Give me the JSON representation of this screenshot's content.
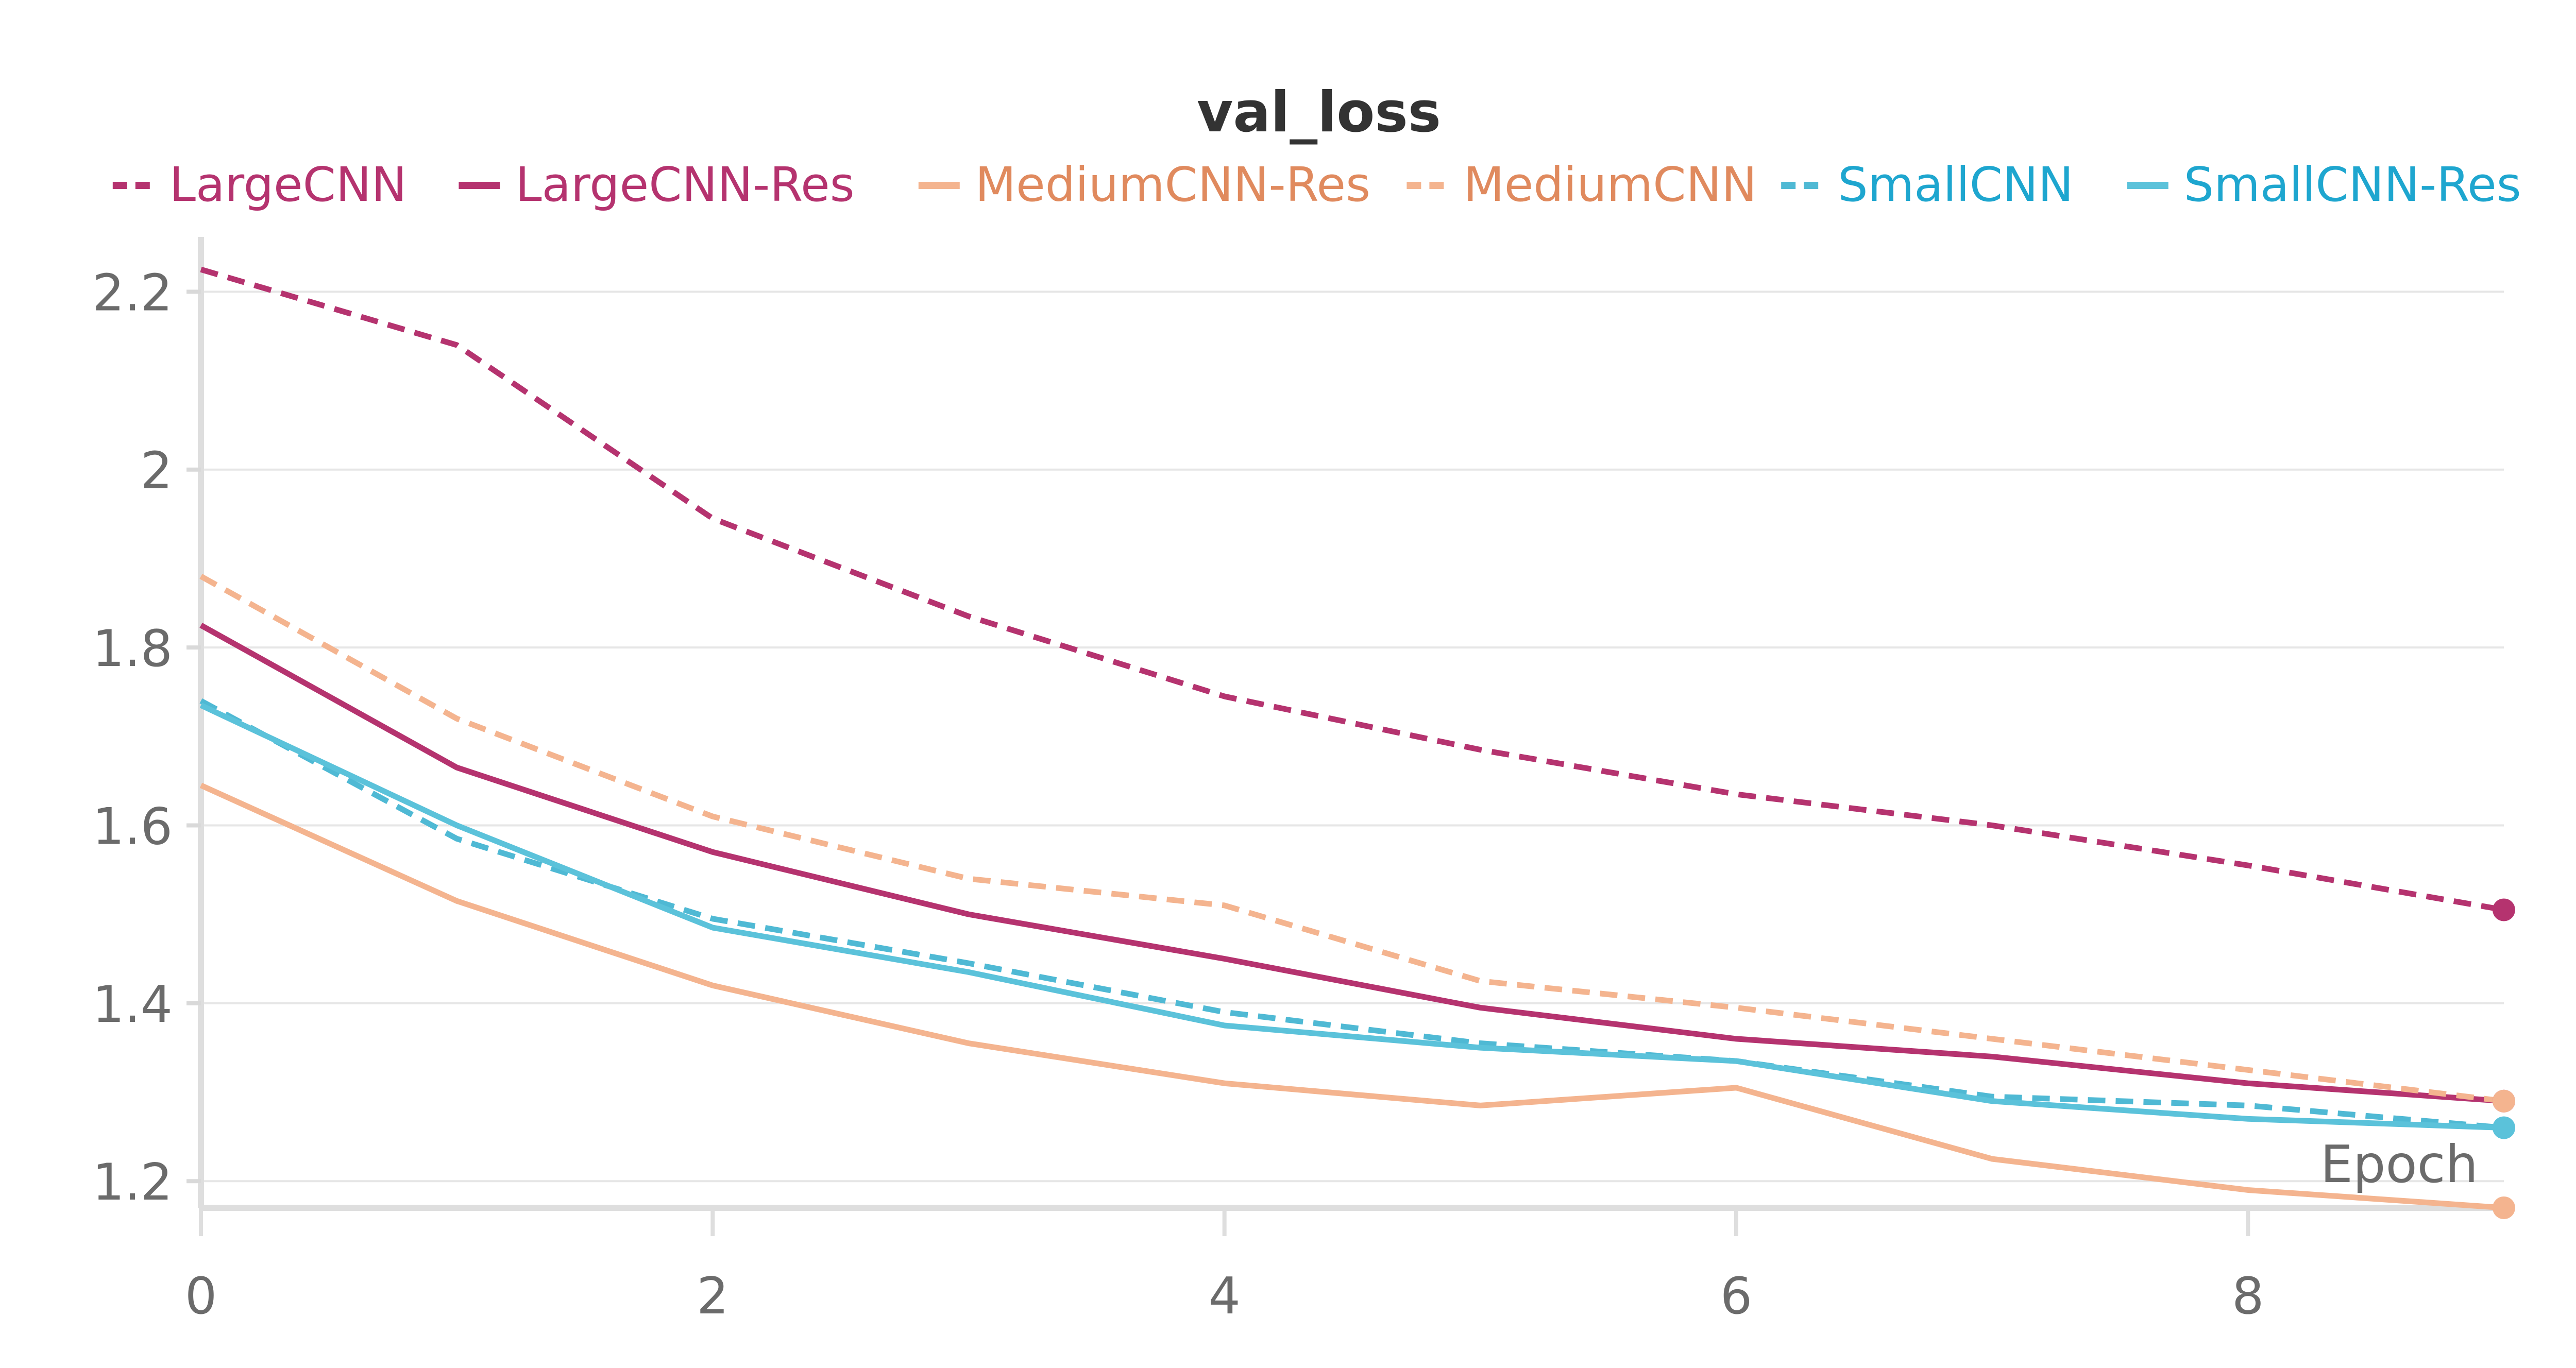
{
  "chart_data": {
    "type": "line",
    "title": "val_loss",
    "xlabel": "Epoch",
    "ylabel": "",
    "xlim": [
      0,
      9
    ],
    "ylim": [
      1.17,
      2.25
    ],
    "x_ticks": [
      0,
      2,
      4,
      6,
      8
    ],
    "y_ticks": [
      1.2,
      1.4,
      1.6,
      1.8,
      2,
      2.2
    ],
    "x_tick_labels": [
      "0",
      "2",
      "4",
      "6",
      "8"
    ],
    "y_tick_labels": [
      "1.2",
      "1.4",
      "1.6",
      "1.8",
      "2",
      "2.2"
    ],
    "grid": "horizontal",
    "legend_position": "top",
    "x": [
      0,
      1,
      2,
      3,
      4,
      5,
      6,
      7,
      8,
      9
    ],
    "series": [
      {
        "name": "LargeCNN",
        "color": "#b5336f",
        "dashed": true,
        "values": [
          2.225,
          2.14,
          1.945,
          1.835,
          1.745,
          1.685,
          1.635,
          1.6,
          1.555,
          1.505
        ]
      },
      {
        "name": "LargeCNN-Res",
        "color": "#b5336f",
        "dashed": false,
        "values": [
          1.825,
          1.665,
          1.57,
          1.5,
          1.45,
          1.395,
          1.36,
          1.34,
          1.31,
          1.29
        ]
      },
      {
        "name": "MediumCNN-Res",
        "color": "#f4b48f",
        "dashed": false,
        "values": [
          1.645,
          1.515,
          1.42,
          1.355,
          1.31,
          1.285,
          1.305,
          1.225,
          1.19,
          1.17
        ]
      },
      {
        "name": "MediumCNN",
        "color": "#f4b48f",
        "dashed": true,
        "values": [
          1.88,
          1.72,
          1.61,
          1.54,
          1.51,
          1.425,
          1.395,
          1.36,
          1.325,
          1.29
        ]
      },
      {
        "name": "SmallCNN",
        "color": "#4fb9d4",
        "dashed": true,
        "values": [
          1.74,
          1.585,
          1.495,
          1.445,
          1.39,
          1.355,
          1.335,
          1.295,
          1.285,
          1.26
        ]
      },
      {
        "name": "SmallCNN-Res",
        "color": "#5bc2da",
        "dashed": false,
        "values": [
          1.735,
          1.6,
          1.485,
          1.435,
          1.375,
          1.35,
          1.335,
          1.29,
          1.27,
          1.26
        ]
      }
    ],
    "legend_text_colors": {
      "LargeCNN": "#b5336f",
      "LargeCNN-Res": "#b5336f",
      "MediumCNN-Res": "#e08a5e",
      "MediumCNN": "#e08a5e",
      "SmallCNN": "#1ea6cf",
      "SmallCNN-Res": "#1ea6cf"
    }
  }
}
